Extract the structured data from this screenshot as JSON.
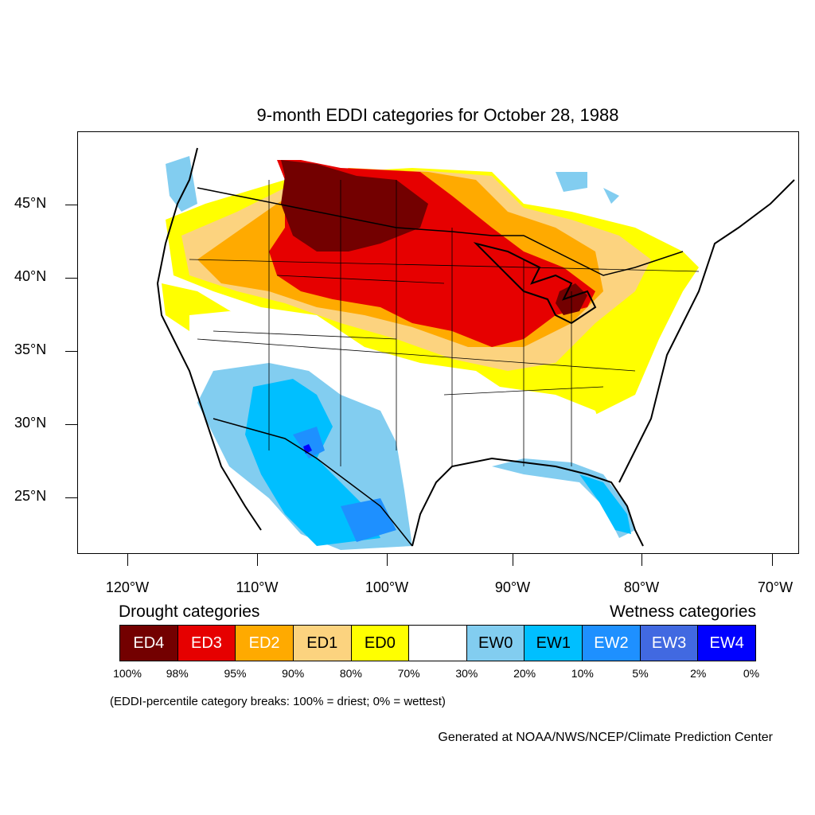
{
  "title": "9-month EDDI categories for October 28, 1988",
  "lat_labels": [
    "45°N",
    "40°N",
    "35°N",
    "30°N",
    "25°N"
  ],
  "lon_labels": [
    "120°W",
    "110°W",
    "100°W",
    "90°W",
    "80°W",
    "70°W"
  ],
  "legend": {
    "drought_heading": "Drought categories",
    "wetness_heading": "Wetness categories",
    "categories": [
      {
        "label": "ED4",
        "color": "#730000",
        "text_color": "#ffffff"
      },
      {
        "label": "ED3",
        "color": "#e60000",
        "text_color": "#ffffff"
      },
      {
        "label": "ED2",
        "color": "#ffaa00",
        "text_color": "#ffffff"
      },
      {
        "label": "ED1",
        "color": "#fcd37f",
        "text_color": "#000000"
      },
      {
        "label": "ED0",
        "color": "#ffff00",
        "text_color": "#000000"
      },
      {
        "label": "",
        "color": "#ffffff",
        "text_color": "#000000"
      },
      {
        "label": "EW0",
        "color": "#82cdf0",
        "text_color": "#000000"
      },
      {
        "label": "EW1",
        "color": "#00bfff",
        "text_color": "#000000"
      },
      {
        "label": "EW2",
        "color": "#1e90ff",
        "text_color": "#ffffff"
      },
      {
        "label": "EW3",
        "color": "#4169e1",
        "text_color": "#ffffff"
      },
      {
        "label": "EW4",
        "color": "#0000ff",
        "text_color": "#ffffff"
      }
    ],
    "breaks": [
      "100%",
      "98%",
      "95%",
      "90%",
      "80%",
      "70%",
      "30%",
      "20%",
      "10%",
      "5%",
      "2%",
      "0%"
    ],
    "note": "(EDDI-percentile category breaks: 100% = driest; 0% = wettest)"
  },
  "credit": "Generated at NOAA/NWS/NCEP/Climate Prediction Center"
}
